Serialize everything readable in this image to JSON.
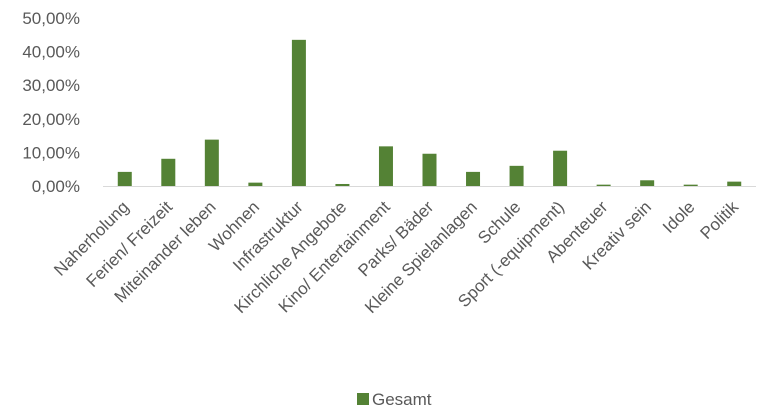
{
  "chart_data": {
    "type": "bar",
    "categories": [
      "Naherholung",
      "Ferien/ Freizeit",
      "Miteinander leben",
      "Wohnen",
      "Infrastruktur",
      "Kirchliche Angebote",
      "Kino/ Entertainment",
      "Parks/ Bäder",
      "Kleine Spielanlagen",
      "Schule",
      "Sport (-equipment)",
      "Abenteuer",
      "Kreativ sein",
      "Idole",
      "Politik"
    ],
    "series": [
      {
        "name": "Gesamt",
        "color": "#548235",
        "values": [
          4.2,
          8.1,
          13.8,
          1.0,
          43.5,
          0.6,
          11.8,
          9.6,
          4.2,
          6.0,
          10.5,
          0.4,
          1.7,
          0.4,
          1.3
        ]
      }
    ],
    "ylim": [
      0,
      50
    ],
    "yticks": [
      0,
      10,
      20,
      30,
      40,
      50
    ],
    "ytick_labels": [
      "0,00%",
      "10,00%",
      "20,00%",
      "30,00%",
      "40,00%",
      "50,00%"
    ],
    "grid": false,
    "legend": {
      "position": "bottom",
      "label": "Gesamt"
    },
    "title": "",
    "xlabel": "",
    "ylabel": ""
  }
}
